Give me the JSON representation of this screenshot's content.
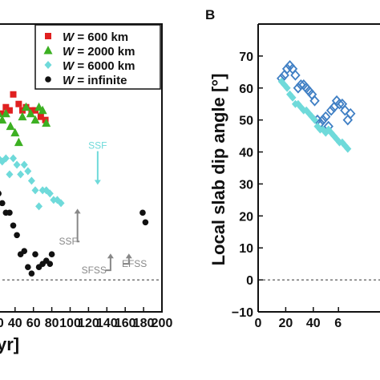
{
  "chart_data": [
    {
      "panel_letter": "",
      "type": "scatter",
      "title": "",
      "xlabel": "yr]",
      "ylabel": "",
      "xlim": [
        0,
        200
      ],
      "ylim": [
        -10,
        80
      ],
      "xticks": [
        "20",
        "40",
        "60",
        "80",
        "100",
        "120",
        "140",
        "160",
        "180",
        "200"
      ],
      "legend": {
        "placement": "top-right",
        "entries": [
          {
            "label_italic": "W",
            "label_rest": " = 600 km",
            "color": "#e02020",
            "marker": "square"
          },
          {
            "label_italic": "W",
            "label_rest": " = 2000 km",
            "color": "#3cb022",
            "marker": "triangle"
          },
          {
            "label_italic": "W",
            "label_rest": " = 6000 km",
            "color": "#6fdada",
            "marker": "diamond"
          },
          {
            "label_italic": "W",
            "label_rest": " = infinite",
            "color": "#111111",
            "marker": "circle"
          }
        ]
      },
      "series": [
        {
          "name": "W = 600 km",
          "color": "#e02020",
          "marker": "square",
          "x": [
            3,
            10,
            15,
            20,
            25,
            30,
            34,
            38,
            44,
            48,
            52,
            58,
            62,
            68,
            73
          ],
          "y": [
            57,
            56,
            54,
            52,
            52,
            54,
            53,
            58,
            55,
            53,
            54,
            53,
            53,
            51,
            50
          ]
        },
        {
          "name": "W = 2000 km",
          "color": "#3cb022",
          "marker": "triangle",
          "x": [
            2,
            6,
            10,
            14,
            18,
            22,
            26,
            30,
            35,
            40,
            44,
            48,
            52,
            57,
            62,
            66,
            70,
            74
          ],
          "y": [
            52,
            52,
            50,
            47,
            50,
            52,
            50,
            52,
            48,
            46,
            43,
            51,
            54,
            52,
            50,
            54,
            53,
            49
          ]
        },
        {
          "name": "W = 6000 km",
          "color": "#6fdada",
          "marker": "diamond",
          "x": [
            2,
            6,
            10,
            14,
            18,
            22,
            26,
            30,
            34,
            38,
            42,
            46,
            50,
            54,
            58,
            62,
            66,
            70,
            74,
            78,
            82,
            86,
            90
          ],
          "y": [
            40,
            38,
            38,
            37,
            39,
            38,
            37,
            38,
            33,
            38,
            36,
            33,
            36,
            34,
            31,
            28,
            23,
            28,
            28,
            27,
            25,
            25,
            24
          ]
        },
        {
          "name": "W = infinite",
          "color": "#111111",
          "marker": "circle",
          "x": [
            2,
            6,
            10,
            14,
            18,
            22,
            26,
            30,
            34,
            38,
            42,
            46,
            50,
            54,
            58,
            62,
            66,
            70,
            74,
            78,
            80
          ],
          "y": [
            31,
            27,
            30,
            33,
            30,
            27,
            24,
            21,
            21,
            17,
            14,
            8,
            9,
            4,
            2,
            8,
            4,
            5,
            6,
            5,
            8
          ]
        }
      ],
      "extra_points": [
        {
          "series": "W = infinite",
          "x": [
            179,
            182
          ],
          "y": [
            21,
            18
          ]
        }
      ],
      "baseline": {
        "y": 0,
        "style": "dashed"
      },
      "annotations": [
        {
          "text": "SSF",
          "x": 130,
          "y": 41,
          "arrow_to": [
            130,
            30
          ],
          "color": "#6fdada"
        },
        {
          "text": "SSF",
          "x": 98,
          "y": 11,
          "arrow_to": [
            108,
            22
          ],
          "color": "#888888"
        },
        {
          "text": "SFSS",
          "x": 126,
          "y": 2,
          "arrow_to": [
            144,
            8
          ],
          "color": "#888888"
        },
        {
          "text": "EFSS",
          "x": 170,
          "y": 4,
          "arrow_to": [
            164,
            8
          ],
          "color": "#888888"
        }
      ]
    },
    {
      "panel_letter": "B",
      "type": "scatter",
      "title": "",
      "xlabel": "",
      "ylabel": "Local slab dip angle [°]",
      "xlim": [
        0,
        70
      ],
      "ylim": [
        -10,
        80
      ],
      "xticks": [
        "0",
        "20",
        "40",
        "6"
      ],
      "yticks": [
        "−10",
        "0",
        "10",
        "20",
        "30",
        "40",
        "50",
        "60",
        "70"
      ],
      "series": [
        {
          "name": "",
          "color": "#3f7fc4",
          "marker": "open-diamond",
          "x": [
            17,
            19,
            21,
            23,
            25,
            27,
            29,
            31,
            33,
            35,
            37,
            39,
            41,
            43,
            45,
            47,
            49,
            51,
            53,
            55,
            57,
            59,
            61,
            63,
            65,
            67
          ],
          "y": [
            63,
            64,
            66,
            67,
            66,
            64,
            60,
            61,
            61,
            60,
            59,
            58,
            56,
            50,
            49,
            50,
            51,
            48,
            53,
            54,
            56,
            55,
            55,
            53,
            50,
            52
          ]
        },
        {
          "name": "",
          "color": "#6fdada",
          "marker": "diamond",
          "x": [
            17,
            19,
            21,
            23,
            25,
            27,
            29,
            31,
            33,
            35,
            37,
            39,
            41,
            43,
            45,
            47,
            49,
            51,
            53,
            55,
            57,
            59,
            61,
            63,
            65
          ],
          "y": [
            62,
            61,
            60,
            58,
            57,
            55,
            55,
            54,
            53,
            53,
            52,
            51,
            50,
            48,
            47,
            47,
            46,
            47,
            46,
            45,
            44,
            43,
            43,
            42,
            41
          ]
        }
      ],
      "baseline": {
        "y": 0,
        "style": "dashed"
      }
    }
  ]
}
